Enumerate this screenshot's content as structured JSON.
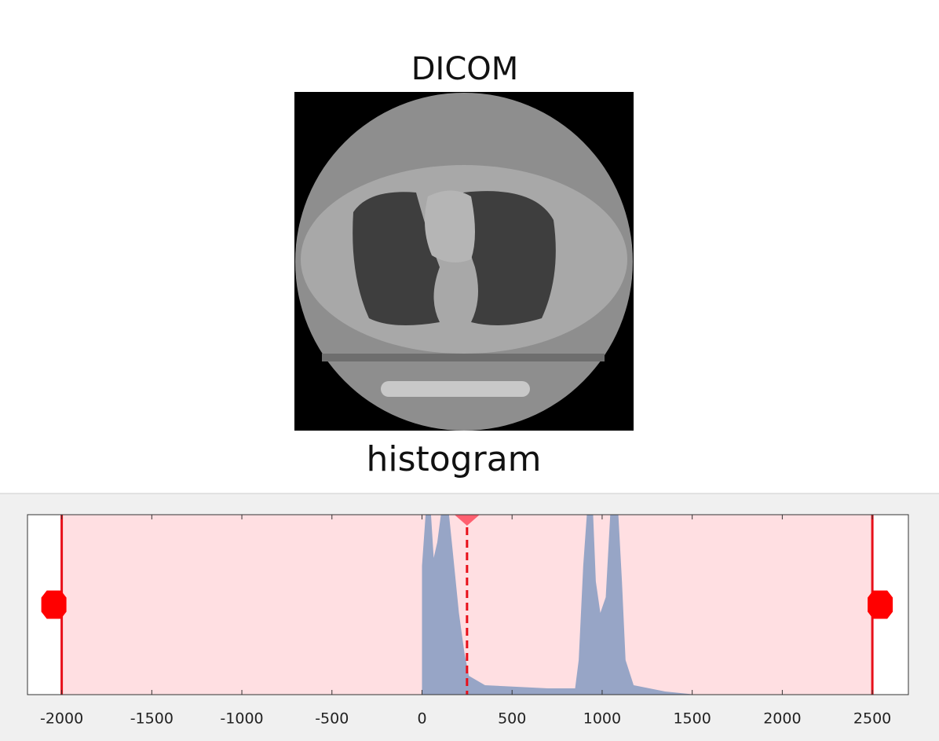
{
  "title": "DICOM",
  "histogram": {
    "title": "histogram",
    "xlim": [
      -2190,
      2700
    ],
    "xticks": [
      -2000,
      -1500,
      -1000,
      -500,
      0,
      500,
      1000,
      1500,
      2000,
      2500
    ],
    "window": {
      "min": -2000,
      "max": 2500,
      "center": 250
    }
  }
}
